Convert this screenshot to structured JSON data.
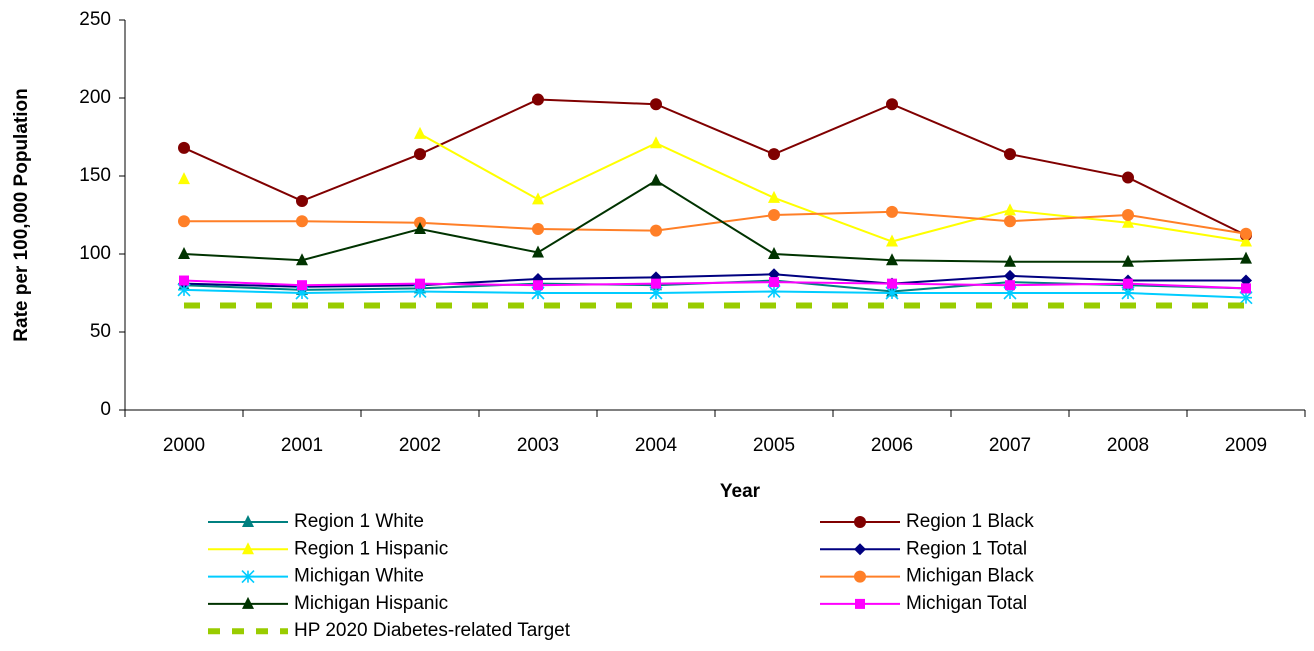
{
  "chart_data": {
    "type": "line",
    "x_label": "Year",
    "y_label": "Rate per 100,000 Population",
    "categories": [
      "2000",
      "2001",
      "2002",
      "2003",
      "2004",
      "2005",
      "2006",
      "2007",
      "2008",
      "2009"
    ],
    "ylim": [
      0,
      250
    ],
    "yticks": [
      0,
      50,
      100,
      150,
      200,
      250
    ],
    "grid": false,
    "series": [
      {
        "name": "Region 1 White",
        "color": "#008080",
        "marker": "triangle",
        "values": [
          80,
          77,
          78,
          81,
          80,
          83,
          76,
          82,
          80,
          78
        ]
      },
      {
        "name": "Region 1 Black",
        "color": "#800000",
        "marker": "circle",
        "values": [
          168,
          134,
          164,
          199,
          196,
          164,
          196,
          164,
          149,
          112
        ]
      },
      {
        "name": "Region 1 Hispanic",
        "color": "#ffff00",
        "marker": "triangle",
        "values": [
          148,
          null,
          177,
          135,
          171,
          136,
          108,
          128,
          120,
          108
        ]
      },
      {
        "name": "Region 1 Total",
        "color": "#000080",
        "marker": "diamond",
        "values": [
          81,
          79,
          80,
          84,
          85,
          87,
          81,
          86,
          83,
          83
        ]
      },
      {
        "name": "Michigan White",
        "color": "#00ccff",
        "marker": "asterisk",
        "values": [
          77,
          75,
          76,
          75,
          75,
          76,
          75,
          75,
          75,
          72
        ]
      },
      {
        "name": "Michigan Black",
        "color": "#ff7f27",
        "marker": "circle",
        "values": [
          121,
          121,
          120,
          116,
          115,
          125,
          127,
          121,
          125,
          113
        ]
      },
      {
        "name": "Michigan Hispanic",
        "color": "#003300",
        "marker": "triangle",
        "values": [
          100,
          96,
          116,
          101,
          147,
          100,
          96,
          95,
          95,
          97
        ]
      },
      {
        "name": "Michigan Total",
        "color": "#ff00ff",
        "marker": "square",
        "values": [
          83,
          80,
          81,
          80,
          81,
          82,
          81,
          80,
          81,
          78
        ]
      },
      {
        "name": "HP 2020 Diabetes-related Target",
        "color": "#99cc00",
        "marker": "none",
        "dashed": true,
        "values": [
          67,
          67,
          67,
          67,
          67,
          67,
          67,
          67,
          67,
          67
        ]
      }
    ]
  }
}
